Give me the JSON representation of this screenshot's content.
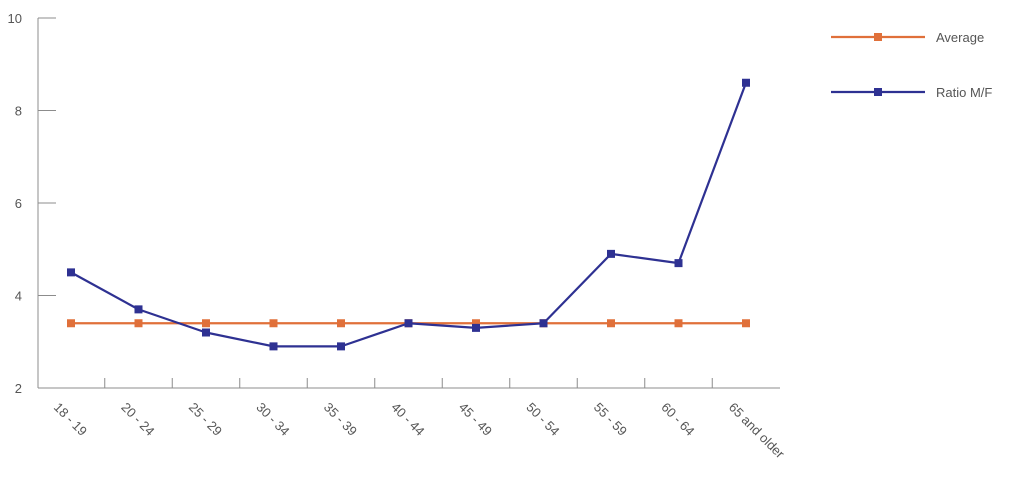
{
  "chart_data": {
    "type": "line",
    "categories": [
      "18 - 19",
      "20 - 24",
      "25 - 29",
      "30 - 34",
      "35 - 39",
      "40 - 44",
      "45 - 49",
      "50 - 54",
      "55 - 59",
      "60 - 64",
      "65 and older"
    ],
    "series": [
      {
        "name": "Average",
        "color": "#e0703a",
        "values": [
          3.4,
          3.4,
          3.4,
          3.4,
          3.4,
          3.4,
          3.4,
          3.4,
          3.4,
          3.4,
          3.4
        ]
      },
      {
        "name": "Ratio M/F",
        "color": "#2e3192",
        "values": [
          4.5,
          3.7,
          3.2,
          2.9,
          2.9,
          3.4,
          3.3,
          3.4,
          4.9,
          4.7,
          8.6
        ]
      }
    ],
    "ylim": [
      2,
      10
    ],
    "yticks": [
      2,
      4,
      6,
      8,
      10
    ],
    "legend_position": "top-right",
    "grid": false
  }
}
